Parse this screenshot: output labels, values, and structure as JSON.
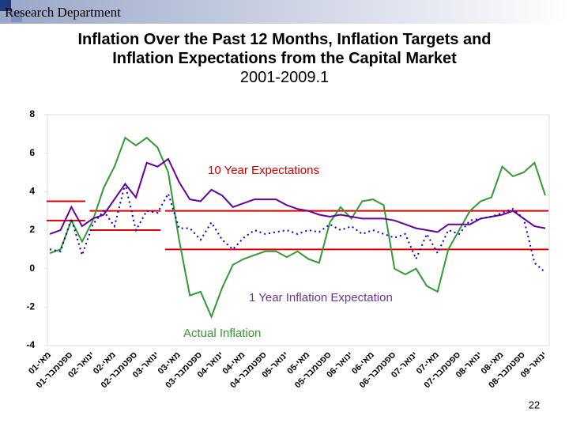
{
  "header": {
    "department": "Research Department",
    "page_number": "22"
  },
  "chart_data": {
    "type": "line",
    "title": "Inflation Over the Past 12 Months, Inflation Targets and Inflation Expectations from the Capital Market",
    "subtitle": "2001-2009.1",
    "categories": [
      "מאי-01",
      null,
      "ספטמבר-01",
      null,
      "ינואר-02",
      null,
      "מאי-02",
      null,
      "ספטמבר-02",
      null,
      "ינואר-03",
      null,
      "מאי-03",
      null,
      "ספטמבר-03",
      null,
      "ינואר-04",
      null,
      "מאי-04",
      null,
      "ספטמבר-04",
      null,
      "ינואר-05",
      null,
      "מאי-05",
      null,
      "ספטמבר-05",
      null,
      "ינואר-06",
      null,
      "מאי-06",
      null,
      "ספטמבר-06",
      null,
      "ינואר-07",
      null,
      "מאי-07",
      null,
      "ספטמבר-07",
      null,
      "ינואר-08",
      null,
      "מאי-08",
      null,
      "ספטמבר-08",
      null,
      "ינואר-09"
    ],
    "series": [
      {
        "name": "Actual Inflation",
        "color": "#339933",
        "label_color": "#339933",
        "dash": false,
        "values": [
          0.8,
          1.0,
          2.5,
          1.4,
          2.5,
          4.2,
          5.3,
          6.8,
          6.4,
          6.8,
          6.3,
          5.0,
          1.5,
          -1.4,
          -1.2,
          -2.5,
          -1.0,
          0.2,
          0.5,
          0.7,
          0.9,
          0.9,
          0.6,
          0.9,
          0.5,
          0.3,
          2.4,
          3.2,
          2.6,
          3.5,
          3.6,
          3.3,
          0.0,
          -0.3,
          0.0,
          -0.9,
          -1.2,
          1.0,
          2.0,
          3.0,
          3.5,
          3.7,
          5.3,
          4.8,
          5.0,
          5.5,
          3.8
        ]
      },
      {
        "name": "10 Year Expectations",
        "color": "#660099",
        "label_color": "#cc0000",
        "dash": false,
        "values": [
          1.8,
          2.0,
          3.2,
          2.2,
          2.6,
          2.8,
          3.6,
          4.4,
          3.7,
          5.5,
          5.3,
          5.7,
          4.5,
          3.6,
          3.5,
          4.1,
          3.8,
          3.2,
          3.4,
          3.6,
          3.6,
          3.6,
          3.3,
          3.1,
          3.0,
          2.8,
          2.7,
          2.8,
          2.7,
          2.6,
          2.6,
          2.6,
          2.5,
          2.3,
          2.1,
          2.0,
          1.9,
          2.3,
          2.3,
          2.3,
          2.6,
          2.7,
          2.8,
          3.0,
          2.6,
          2.2,
          2.1
        ]
      },
      {
        "name": "1 Year Inflation Expectation",
        "color": "#0000cc",
        "label_color": "#663399",
        "dash": true,
        "values": [
          1.0,
          0.9,
          2.6,
          0.7,
          2.3,
          3.0,
          2.2,
          4.4,
          2.0,
          3.0,
          2.9,
          3.9,
          2.1,
          2.1,
          1.5,
          2.4,
          1.5,
          1.0,
          1.6,
          2.0,
          1.8,
          1.9,
          2.0,
          1.8,
          2.0,
          1.9,
          2.3,
          2.0,
          2.2,
          1.8,
          2.0,
          1.8,
          1.6,
          1.8,
          0.5,
          1.8,
          0.8,
          2.0,
          1.8,
          2.5,
          2.6,
          2.7,
          2.9,
          3.1,
          2.6,
          0.3,
          -0.2
        ]
      }
    ],
    "target_bands": [
      {
        "start": 0,
        "end": 3,
        "low": 2.5,
        "high": 3.5
      },
      {
        "start": 4,
        "end": 10,
        "low": 2,
        "high": 3
      },
      {
        "start": 11,
        "end": 46,
        "low": 1,
        "high": 3
      }
    ],
    "target_color": "#dd0000",
    "ylim": [
      -4,
      8
    ],
    "yticks": [
      -4,
      -2,
      0,
      2,
      4,
      6,
      8
    ],
    "grid": false
  }
}
